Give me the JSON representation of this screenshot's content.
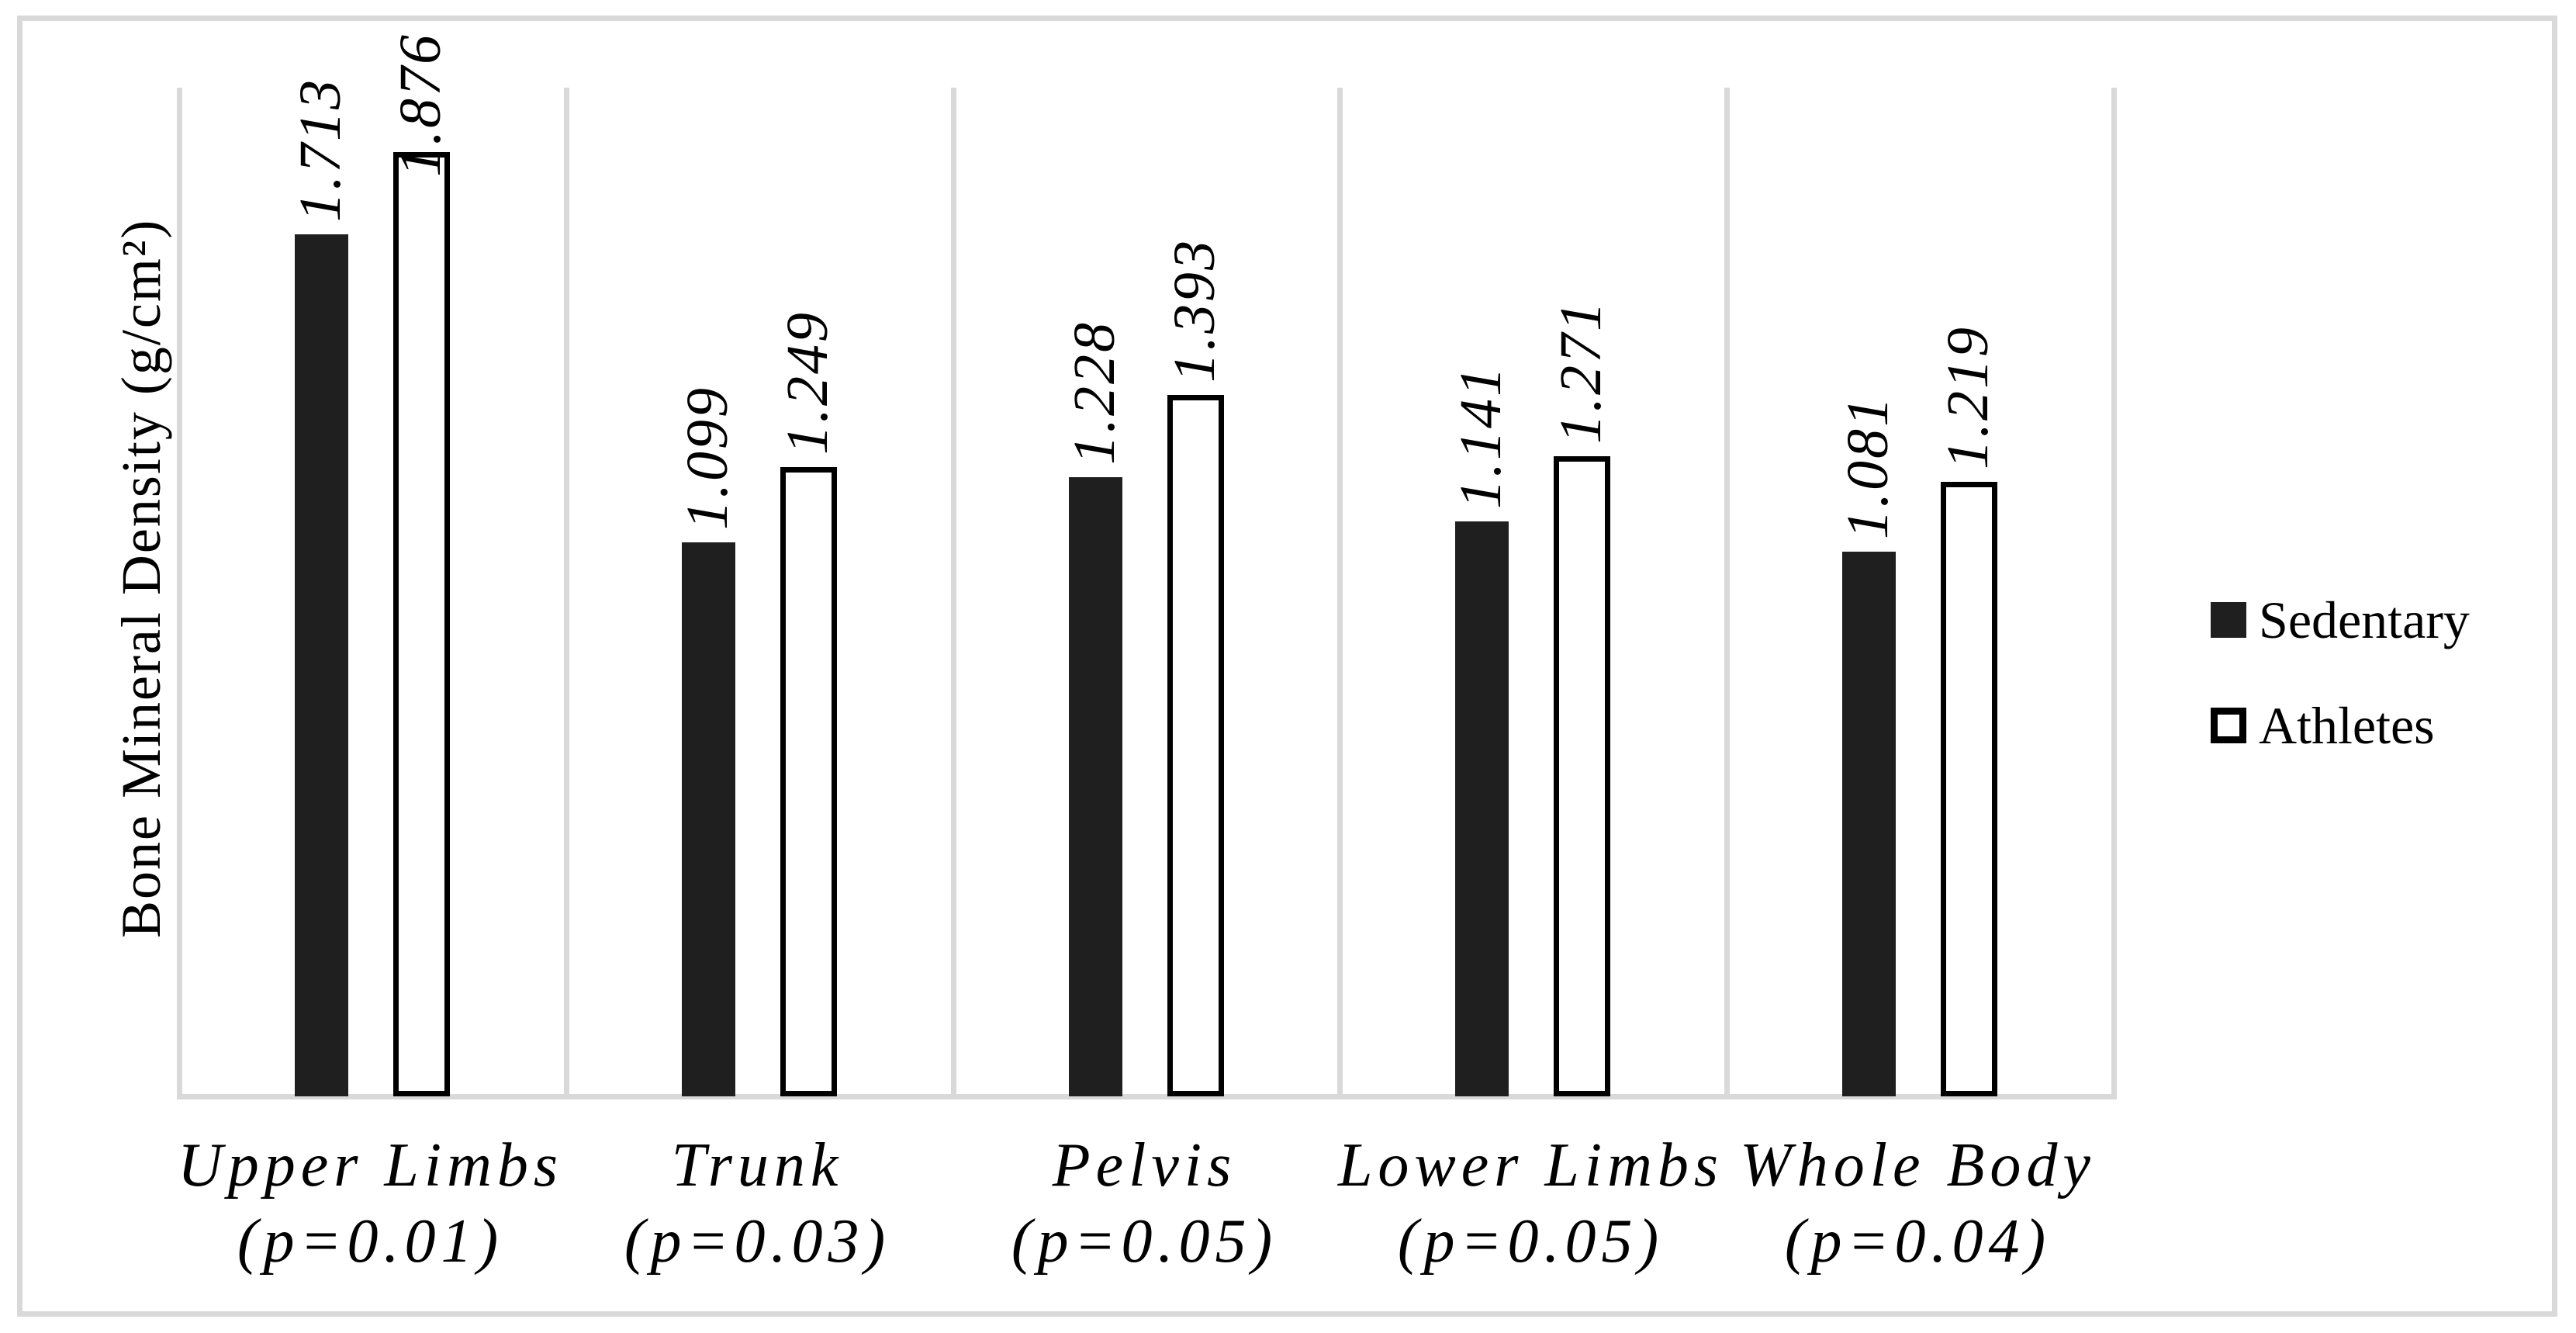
{
  "chart_data": {
    "type": "bar",
    "title": "",
    "xlabel": "",
    "ylabel": "Bone Mineral Density (g/cm²)",
    "ylim": [
      0,
      2.0
    ],
    "axis_ticks": "none",
    "gridlines": "vertical-category-separators",
    "legend_position": "right",
    "value_label_style": "rotated-90-ccw-italic",
    "categories": [
      {
        "label": "Upper Limbs",
        "p_value": "(p=0.01)",
        "slug": "upper-limbs"
      },
      {
        "label": "Trunk",
        "p_value": "(p=0.03)",
        "slug": "trunk"
      },
      {
        "label": "Pelvis",
        "p_value": "(p=0.05)",
        "slug": "pelvis"
      },
      {
        "label": "Lower Limbs",
        "p_value": "(p=0.05)",
        "slug": "lower-limbs"
      },
      {
        "label": "Whole Body",
        "p_value": "(p=0.04)",
        "slug": "whole-body"
      }
    ],
    "series": [
      {
        "name": "Sedentary",
        "swatch": "filled",
        "values": [
          1.713,
          1.099,
          1.228,
          1.141,
          1.081
        ]
      },
      {
        "name": "Athletes",
        "swatch": "outlined",
        "values": [
          1.876,
          1.249,
          1.393,
          1.271,
          1.219
        ]
      }
    ],
    "colors": {
      "sedentary_fill": "#1f1f1f",
      "athletes_fill": "#ffffff",
      "bar_outline": "#000000",
      "gridline": "#d9d9d9",
      "text": "#000000",
      "background": "#ffffff"
    }
  }
}
